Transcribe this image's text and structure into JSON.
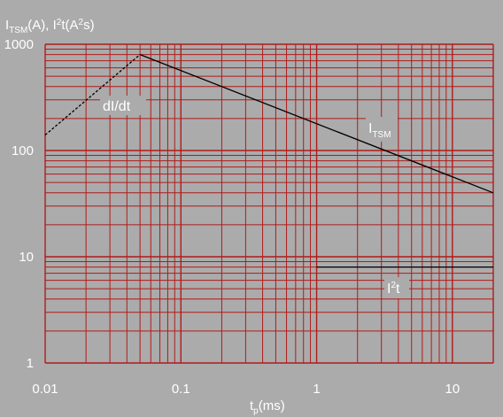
{
  "chart_data": {
    "type": "line",
    "ylabel": {
      "main1": "I",
      "sub1": "TSM",
      "rest1": "(A), I",
      "sup": "2",
      "rest2": "t(A",
      "sup2": "2",
      "rest3": "s)"
    },
    "xlabel": {
      "main": "t",
      "sub": "p",
      "rest": "(ms)"
    },
    "x_scale": "log",
    "y_scale": "log",
    "xlim": [
      0.01,
      20
    ],
    "ylim": [
      1,
      1000
    ],
    "x_ticks": [
      {
        "value": 0.01,
        "label": "0.01"
      },
      {
        "value": 0.1,
        "label": "0.1"
      },
      {
        "value": 1,
        "label": "1"
      },
      {
        "value": 10,
        "label": "10"
      }
    ],
    "y_ticks": [
      {
        "value": 1,
        "label": "1"
      },
      {
        "value": 10,
        "label": "10"
      },
      {
        "value": 100,
        "label": "100"
      },
      {
        "value": 1000,
        "label": "1000"
      }
    ],
    "grid": true,
    "colors": {
      "grid": "#b11b1b",
      "background": "#ababab",
      "line": "#000000",
      "text": "#ffffff"
    },
    "series": [
      {
        "name": "dI/dt",
        "style": "dashed",
        "points": [
          [
            0.01,
            140
          ],
          [
            0.05,
            800
          ]
        ]
      },
      {
        "name": "I",
        "name_sub": "TSM",
        "style": "solid",
        "points": [
          [
            0.05,
            800
          ],
          [
            20,
            40
          ]
        ]
      },
      {
        "name": "I",
        "name_sup": "2",
        "name_rest": "t",
        "style": "solid",
        "points": [
          [
            1,
            8
          ],
          [
            20,
            8
          ]
        ]
      }
    ],
    "annotations": {
      "didt": "dI/dt",
      "itsm_main": "I",
      "itsm_sub": "TSM",
      "i2t_main": "I",
      "i2t_sup": "2",
      "i2t_rest": "t"
    }
  }
}
